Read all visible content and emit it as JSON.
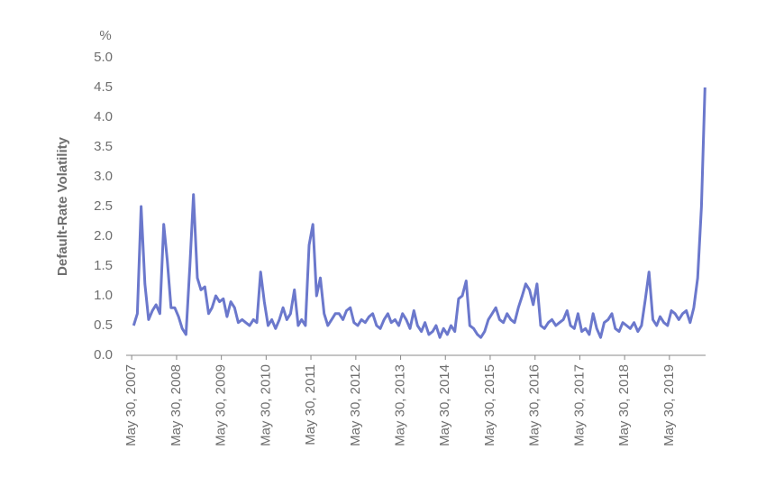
{
  "chart_data": {
    "type": "line",
    "y_label": "Default-Rate Volatility",
    "y_unit": "%",
    "x": [
      "2007-06-15",
      "2007-07-15",
      "2007-08-15",
      "2007-09-15",
      "2007-10-15",
      "2007-11-15",
      "2007-12-15",
      "2008-01-15",
      "2008-02-15",
      "2008-03-15",
      "2008-04-15",
      "2008-05-15",
      "2008-06-15",
      "2008-07-15",
      "2008-08-15",
      "2008-09-15",
      "2008-10-15",
      "2008-11-15",
      "2008-12-15",
      "2009-01-15",
      "2009-02-15",
      "2009-03-15",
      "2009-04-15",
      "2009-05-15",
      "2009-06-15",
      "2009-07-15",
      "2009-08-15",
      "2009-09-15",
      "2009-10-15",
      "2009-11-15",
      "2009-12-15",
      "2010-01-15",
      "2010-02-15",
      "2010-03-15",
      "2010-04-15",
      "2010-05-15",
      "2010-06-15",
      "2010-07-15",
      "2010-08-15",
      "2010-09-15",
      "2010-10-15",
      "2010-11-15",
      "2010-12-15",
      "2011-01-15",
      "2011-02-15",
      "2011-03-15",
      "2011-04-15",
      "2011-05-15",
      "2011-06-15",
      "2011-07-15",
      "2011-08-15",
      "2011-09-15",
      "2011-10-15",
      "2011-11-15",
      "2011-12-15",
      "2012-01-15",
      "2012-02-15",
      "2012-03-15",
      "2012-04-15",
      "2012-05-15",
      "2012-06-15",
      "2012-07-15",
      "2012-08-15",
      "2012-09-15",
      "2012-10-15",
      "2012-11-15",
      "2012-12-15",
      "2013-01-15",
      "2013-02-15",
      "2013-03-15",
      "2013-04-15",
      "2013-05-15",
      "2013-06-15",
      "2013-07-15",
      "2013-08-15",
      "2013-09-15",
      "2013-10-15",
      "2013-11-15",
      "2013-12-15",
      "2014-01-15",
      "2014-02-15",
      "2014-03-15",
      "2014-04-15",
      "2014-05-15",
      "2014-06-15",
      "2014-07-15",
      "2014-08-15",
      "2014-09-15",
      "2014-10-15",
      "2014-11-15",
      "2014-12-15",
      "2015-01-15",
      "2015-02-15",
      "2015-03-15",
      "2015-04-15",
      "2015-05-15",
      "2015-06-15",
      "2015-07-15",
      "2015-08-15",
      "2015-09-15",
      "2015-10-15",
      "2015-11-15",
      "2015-12-15",
      "2016-01-15",
      "2016-02-15",
      "2016-03-15",
      "2016-04-15",
      "2016-05-15",
      "2016-06-15",
      "2016-07-15",
      "2016-08-15",
      "2016-09-15",
      "2016-10-15",
      "2016-11-15",
      "2016-12-15",
      "2017-01-15",
      "2017-02-15",
      "2017-03-15",
      "2017-04-15",
      "2017-05-15",
      "2017-06-15",
      "2017-07-15",
      "2017-08-15",
      "2017-09-15",
      "2017-10-15",
      "2017-11-15",
      "2017-12-15",
      "2018-01-15",
      "2018-02-15",
      "2018-03-15",
      "2018-04-15",
      "2018-05-15",
      "2018-06-15",
      "2018-07-15",
      "2018-08-15",
      "2018-09-15",
      "2018-10-15",
      "2018-11-15",
      "2018-12-15",
      "2019-01-15",
      "2019-02-15",
      "2019-03-15",
      "2019-04-15",
      "2019-05-15",
      "2019-06-15",
      "2019-07-15",
      "2019-08-15",
      "2019-09-15",
      "2019-10-15",
      "2019-11-15",
      "2019-12-15",
      "2020-01-15",
      "2020-02-15",
      "2020-03-15"
    ],
    "series": [
      {
        "color": "#6b78cc",
        "values": [
          0.5,
          0.7,
          2.5,
          1.2,
          0.6,
          0.75,
          0.85,
          0.7,
          2.2,
          1.6,
          0.8,
          0.8,
          0.65,
          0.45,
          0.35,
          1.5,
          2.7,
          1.3,
          1.1,
          1.15,
          0.7,
          0.8,
          1.0,
          0.9,
          0.95,
          0.65,
          0.9,
          0.8,
          0.55,
          0.6,
          0.55,
          0.5,
          0.6,
          0.55,
          1.4,
          0.9,
          0.5,
          0.6,
          0.45,
          0.6,
          0.8,
          0.6,
          0.7,
          1.1,
          0.5,
          0.6,
          0.5,
          1.85,
          2.2,
          1.0,
          1.3,
          0.7,
          0.5,
          0.6,
          0.7,
          0.7,
          0.6,
          0.75,
          0.8,
          0.55,
          0.5,
          0.6,
          0.55,
          0.65,
          0.7,
          0.5,
          0.45,
          0.6,
          0.7,
          0.55,
          0.6,
          0.5,
          0.7,
          0.6,
          0.45,
          0.75,
          0.5,
          0.4,
          0.55,
          0.35,
          0.4,
          0.5,
          0.3,
          0.45,
          0.35,
          0.5,
          0.4,
          0.95,
          1.0,
          1.25,
          0.5,
          0.45,
          0.35,
          0.3,
          0.4,
          0.6,
          0.7,
          0.8,
          0.6,
          0.55,
          0.7,
          0.6,
          0.55,
          0.8,
          1.0,
          1.2,
          1.1,
          0.85,
          1.2,
          0.5,
          0.45,
          0.55,
          0.6,
          0.5,
          0.55,
          0.6,
          0.75,
          0.5,
          0.45,
          0.7,
          0.4,
          0.45,
          0.35,
          0.7,
          0.45,
          0.3,
          0.55,
          0.6,
          0.7,
          0.45,
          0.4,
          0.55,
          0.5,
          0.45,
          0.55,
          0.4,
          0.5,
          0.95,
          1.4,
          0.6,
          0.5,
          0.65,
          0.55,
          0.5,
          0.75,
          0.7,
          0.6,
          0.7,
          0.75,
          0.55,
          0.8,
          1.3,
          2.5,
          4.5
        ]
      }
    ],
    "xlim": [
      "2007-04-15",
      "2020-03-20"
    ],
    "xticks": [
      {
        "value": "2007-05-30",
        "label": "May 30, 2007"
      },
      {
        "value": "2008-05-30",
        "label": "May 30, 2008"
      },
      {
        "value": "2009-05-30",
        "label": "May 30, 2009"
      },
      {
        "value": "2010-05-30",
        "label": "May 30, 2010"
      },
      {
        "value": "2011-05-30",
        "label": "May 30, 2011"
      },
      {
        "value": "2012-05-30",
        "label": "May 30, 2012"
      },
      {
        "value": "2013-05-30",
        "label": "May 30, 2013"
      },
      {
        "value": "2014-05-30",
        "label": "May 30, 2014"
      },
      {
        "value": "2015-05-30",
        "label": "May 30, 2015"
      },
      {
        "value": "2016-05-30",
        "label": "May 30, 2016"
      },
      {
        "value": "2017-05-30",
        "label": "May 30, 2017"
      },
      {
        "value": "2018-05-30",
        "label": "May 30, 2018"
      },
      {
        "value": "2019-05-30",
        "label": "May 30, 2019"
      }
    ],
    "ylim": [
      0,
      5
    ],
    "yticks": [
      {
        "value": 0,
        "label": "0.0"
      },
      0.5,
      {
        "value": 1,
        "label": "1.0"
      },
      1.5,
      {
        "value": 2,
        "label": "2.0"
      },
      2.5,
      {
        "value": 3,
        "label": "3.0"
      },
      3.5,
      {
        "value": 4,
        "label": "4.0"
      },
      4.5,
      {
        "value": 5,
        "label": "5.0"
      }
    ],
    "grid": false
  }
}
